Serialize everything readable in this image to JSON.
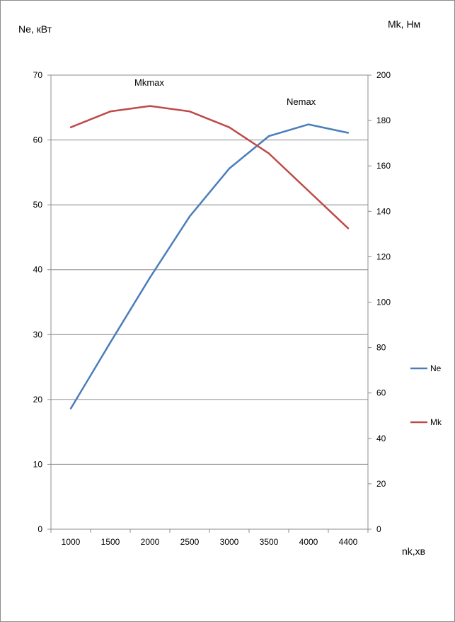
{
  "chart_data": {
    "type": "line",
    "categories": [
      "1000",
      "1500",
      "2000",
      "2500",
      "3000",
      "3500",
      "4000",
      "4400"
    ],
    "series": [
      {
        "name": "Ne",
        "axis": "left",
        "color": "#4a7ebb",
        "values": [
          18.6,
          28.8,
          38.8,
          48.2,
          55.6,
          60.6,
          62.4,
          61.1
        ]
      },
      {
        "name": "Mk",
        "axis": "right",
        "color": "#be4b48",
        "values": [
          177,
          184,
          186.4,
          184,
          177,
          165.5,
          149,
          132.5
        ]
      }
    ],
    "y_left": {
      "label": "Ne, кВт",
      "ylim": [
        0,
        70
      ],
      "ticks": [
        "0",
        "10",
        "20",
        "30",
        "40",
        "50",
        "60",
        "70"
      ]
    },
    "y_right": {
      "label": "Mk, Нм",
      "ylim": [
        0,
        200
      ],
      "ticks": [
        "0",
        "20",
        "40",
        "60",
        "80",
        "100",
        "120",
        "140",
        "160",
        "180",
        "200"
      ]
    },
    "xlabel": "nk,хв",
    "annotations": [
      "Mkmax",
      "Nemax"
    ],
    "grid": true,
    "legend_position": "right"
  }
}
